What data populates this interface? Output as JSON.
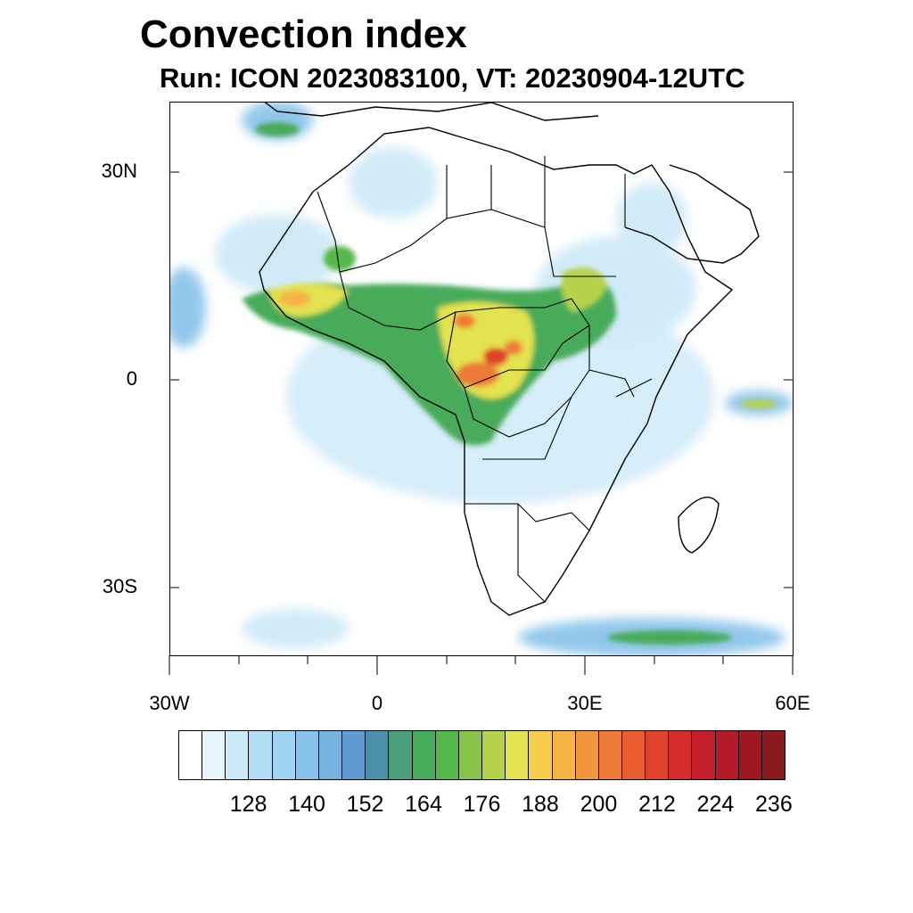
{
  "title": "Convection index",
  "subtitle": "Run: ICON 2023083100,  VT: 20230904-12UTC",
  "map": {
    "region": "Africa",
    "lon_range": [
      -30,
      60
    ],
    "lat_range": [
      -40,
      40
    ],
    "y_axis_labels": [
      "30N",
      "0",
      "30S"
    ],
    "x_axis_labels": [
      "30W",
      "0",
      "30E",
      "60E"
    ]
  },
  "colorbar": {
    "labels": [
      "128",
      "140",
      "152",
      "164",
      "176",
      "188",
      "200",
      "212",
      "224",
      "236"
    ],
    "colors": [
      "#ffffff",
      "#e6f4fc",
      "#cce9f7",
      "#b4def5",
      "#9fd3f2",
      "#87c2ea",
      "#74b2e0",
      "#5f9bd0",
      "#4b8fa8",
      "#4aa07a",
      "#46ab5a",
      "#55b84a",
      "#88c34a",
      "#b6d24c",
      "#e3e250",
      "#f5cc4b",
      "#f5b445",
      "#f2963e",
      "#ee7a37",
      "#e85e31",
      "#e0432c",
      "#d52b2b",
      "#c41d2a",
      "#b21a27",
      "#9e1822",
      "#8a1a1d"
    ]
  }
}
